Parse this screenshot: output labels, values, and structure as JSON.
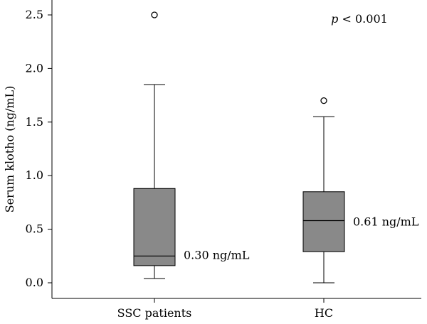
{
  "chart_data": {
    "type": "box",
    "title": "",
    "xlabel": "",
    "ylabel": "Serum klotho (ng/mL)",
    "ylim": [
      0.0,
      2.5
    ],
    "yticks": [
      "0.0",
      "0.5",
      "1.0",
      "1.5",
      "2.0",
      "2.5"
    ],
    "categories": [
      "SSC patients",
      "HC"
    ],
    "boxes": [
      {
        "category": "SSC patients",
        "whisker_low": 0.04,
        "q1": 0.16,
        "median": 0.25,
        "q3": 0.88,
        "whisker_high": 1.85,
        "outliers": [
          2.5
        ],
        "label": "0.30 ng/mL"
      },
      {
        "category": "HC",
        "whisker_low": 0.0,
        "q1": 0.29,
        "median": 0.58,
        "q3": 0.85,
        "whisker_high": 1.55,
        "outliers": [
          1.7
        ],
        "label": "0.61 ng/mL"
      }
    ],
    "annotation": {
      "italic": "p",
      "rest": " < 0.001"
    },
    "box_color": "#898989",
    "line_color": "#000000"
  }
}
